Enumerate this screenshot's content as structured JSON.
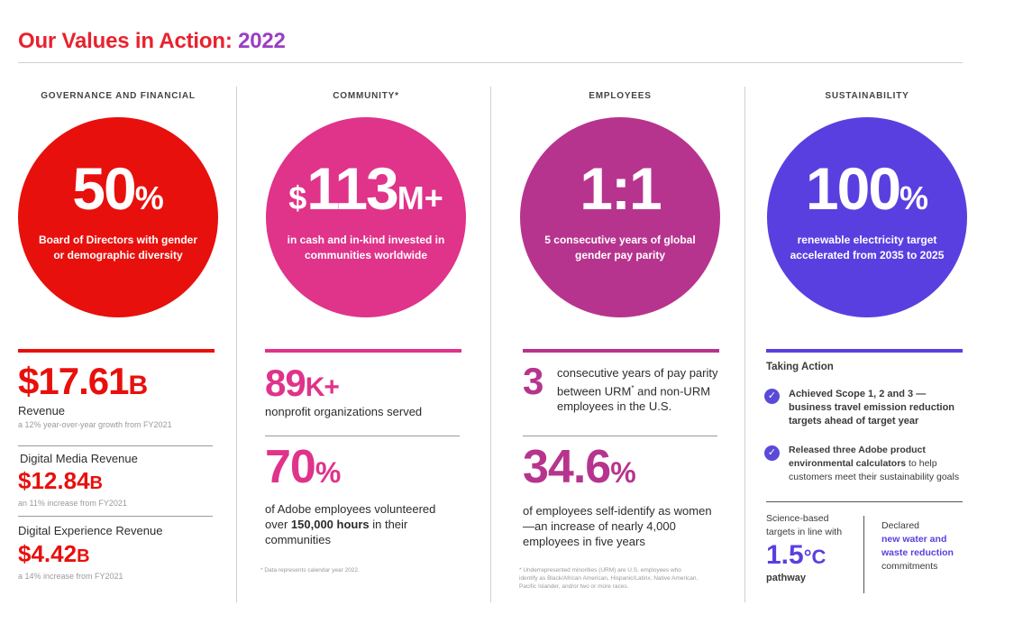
{
  "title": {
    "part1": "Our Values in Action:",
    "part2": "2022"
  },
  "colors": {
    "red": "#e8100c",
    "magenta": "#e0338a",
    "plum": "#b7348e",
    "purple": "#5a3fe0"
  },
  "governance": {
    "header": "GOVERNANCE AND FINANCIAL",
    "circle_big": "50",
    "circle_unit": "%",
    "circle_caption": "Board of Directors with gender or demographic diversity",
    "revenue_value": "$17.61",
    "revenue_unit": "B",
    "revenue_label": "Revenue",
    "revenue_sub": "a 12% year-over-year growth from FY2021",
    "dm_label": "Digital Media Revenue",
    "dm_value": "$12.84",
    "dm_unit": "B",
    "dm_sub": "an 11% increase from FY2021",
    "de_label": "Digital Experience Revenue",
    "de_value": "$4.42",
    "de_unit": "B",
    "de_sub": "a 14% increase from FY2021"
  },
  "community": {
    "header": "COMMUNITY*",
    "circle_prefix": "$",
    "circle_big": "113",
    "circle_unit": "M+",
    "circle_caption": "in cash and in-kind invested in communities worldwide",
    "stat1_value": "89",
    "stat1_unit": "K+",
    "stat1_label": "nonprofit organizations served",
    "stat2_value": "70",
    "stat2_unit": "%",
    "stat2_label_pre": "of Adobe employees volunteered over ",
    "stat2_label_bold": "150,000 hours",
    "stat2_label_post": " in their communities",
    "footnote": "* Data represents calendar year 2022."
  },
  "employees": {
    "header": "EMPLOYEES",
    "circle_big": "1:1",
    "circle_caption": "5 consecutive years of global gender pay parity",
    "stat1_value": "3",
    "stat1_label_pre": "consecutive years of pay parity between URM",
    "stat1_label_sup": "*",
    "stat1_label_post": " and non-URM employees in the U.S.",
    "stat2_value": "34.6",
    "stat2_unit": "%",
    "stat2_label": "of employees self-identify as women—an increase of nearly 4,000 employees in five years",
    "footnote": "* Underrepresented minorities (URM) are U.S. employees who identify as Black/African American, Hispanic/Latinx, Native American, Pacific Islander, and/or two or more races."
  },
  "sustainability": {
    "header": "SUSTAINABILITY",
    "circle_big": "100",
    "circle_unit": "%",
    "circle_caption": "renewable electricity target accelerated from 2035 to 2025",
    "taking_action": "Taking Action",
    "action1": "Achieved Scope 1, 2 and 3 — business travel emission reduction targets ahead of target year",
    "action2_bold": "Released three Adobe product environmental calculators",
    "action2_rest": " to help customers meet their sustainability goals",
    "sbt_pre": "Science-based targets in line with",
    "sbt_value": "1.5",
    "sbt_unit": "°C",
    "sbt_post": "pathway",
    "declared_pre": "Declared",
    "declared_bold": "new water and waste reduction",
    "declared_post": "commitments"
  }
}
